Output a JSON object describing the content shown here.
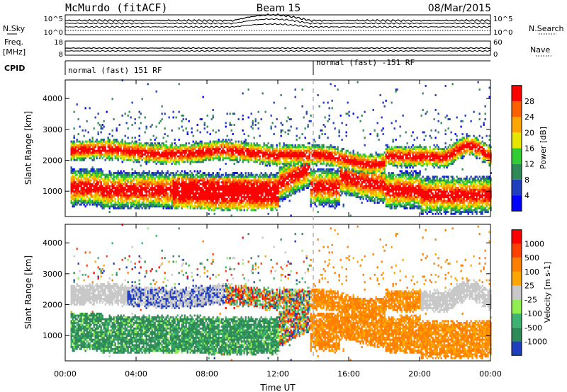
{
  "header": {
    "station": "McMurdo (fitACF)",
    "beam": "Beam 15",
    "date": "08/Mar/2015"
  },
  "side_labels": {
    "nsky": "N.Sky",
    "freq": "Freq.",
    "freq_unit": "[MHz]",
    "cpid": "CPID",
    "nsearch": "N.Search",
    "nave": "Nave"
  },
  "cpid_segments": [
    {
      "label": "normal (fast) 151 RF",
      "start_hour": 0
    },
    {
      "label": "normal (fast) -151 RF",
      "start_hour": 14.0
    }
  ],
  "noise_panel": {
    "left_ticks": [
      "10^5",
      "10^0"
    ],
    "right_ticks": [
      "10^5",
      "10^0"
    ]
  },
  "freq_panel": {
    "left_ticks": [
      "18",
      "8"
    ],
    "right_ticks": [
      "60",
      "0"
    ]
  },
  "chart_data": [
    {
      "type": "heatmap",
      "parameter": "power",
      "ylabel": "Slant Range [km]",
      "ylim": [
        180,
        4600
      ],
      "yticks": [
        "4000",
        "3000",
        "2000",
        "1000"
      ],
      "xlim": [
        0,
        24
      ],
      "colorbar": {
        "label": "Power [dB]",
        "ticks": [
          "28",
          "24",
          "20",
          "16",
          "12",
          "8",
          "4"
        ],
        "colors": [
          "#0000ff",
          "#1f3fbf",
          "#2e8b57",
          "#32cd32",
          "#e6e600",
          "#ffa500",
          "#ff6000",
          "#ff0000"
        ]
      },
      "bands": [
        {
          "hours": [
            0.2,
            24.0
          ],
          "range_km": [
            1800,
            2500
          ],
          "note": "upper echo band"
        },
        {
          "hours": [
            0.2,
            24.0
          ],
          "range_km": [
            400,
            1600
          ],
          "note": "lower echo band"
        }
      ]
    },
    {
      "type": "heatmap",
      "parameter": "velocity",
      "ylabel": "Slant Range [km]",
      "ylim": [
        180,
        4600
      ],
      "yticks": [
        "4000",
        "3000",
        "2000",
        "1000"
      ],
      "xlim": [
        0,
        24
      ],
      "xticks": [
        "00:00",
        "04:00",
        "08:00",
        "12:00",
        "16:00",
        "20:00",
        "00:00"
      ],
      "xlabel": "Time UT",
      "colorbar": {
        "label": "Velocity [m s-1]",
        "ticks": [
          "1000",
          "500",
          "100",
          "25",
          "-25",
          "-100",
          "-500",
          "-1000"
        ],
        "colors": [
          "#1f3fbf",
          "#2e8b57",
          "#3cb371",
          "#90ee50",
          "#c8c8c8",
          "#ffa500",
          "#ff7f00",
          "#ff4000",
          "#ff0000"
        ]
      }
    }
  ]
}
